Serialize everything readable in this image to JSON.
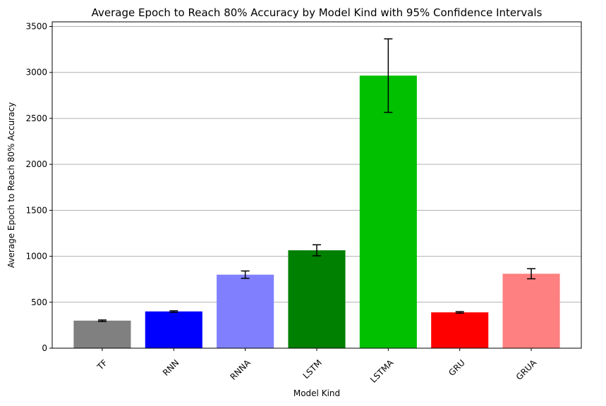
{
  "chart_data": {
    "type": "bar",
    "title": "Average Epoch to Reach 80% Accuracy by Model Kind with 95% Confidence Intervals",
    "xlabel": "Model Kind",
    "ylabel": "Average Epoch to Reach 80% Accuracy",
    "categories": [
      "TF",
      "RNN",
      "RNNA",
      "LSTM",
      "LSTMA",
      "GRU",
      "GRUA"
    ],
    "values": [
      300,
      400,
      800,
      1065,
      2965,
      390,
      810
    ],
    "ci_lower": [
      290,
      390,
      760,
      1005,
      2565,
      382,
      755
    ],
    "ci_upper": [
      307,
      407,
      840,
      1125,
      3365,
      398,
      865
    ],
    "colors": [
      "#808080",
      "#0000ff",
      "#8080ff",
      "#008000",
      "#00c000",
      "#ff0000",
      "#ff8080"
    ],
    "ylim": [
      0,
      3550
    ],
    "yticks": [
      0,
      500,
      1000,
      1500,
      2000,
      2500,
      3000,
      3500
    ],
    "ytick_labels": [
      "0",
      "500",
      "1000",
      "1500",
      "2000",
      "2500",
      "3000",
      "3500"
    ],
    "grid": "y",
    "legend": "none"
  }
}
